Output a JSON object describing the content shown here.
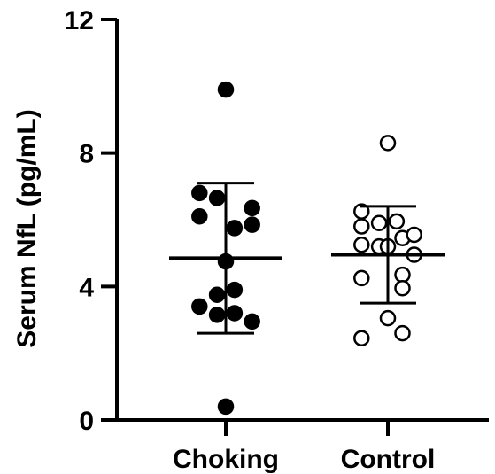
{
  "chart_data": {
    "type": "scatter",
    "ylabel": "Serum NfL (pg/mL)",
    "xlabel": "",
    "ylim": [
      0,
      12
    ],
    "yticks": [
      0,
      4,
      8,
      12
    ],
    "ytick_labels": [
      "0",
      "4",
      "8",
      "12"
    ],
    "grid": false,
    "categories": [
      "Choking",
      "Control"
    ],
    "series": [
      {
        "category": "Choking",
        "marker": "filled-circle",
        "color": "#000000",
        "points": [
          {
            "offset": 0.0,
            "value": 9.9
          },
          {
            "offset": -0.45,
            "value": 6.8
          },
          {
            "offset": -0.15,
            "value": 6.65
          },
          {
            "offset": 0.45,
            "value": 6.35
          },
          {
            "offset": -0.45,
            "value": 6.1
          },
          {
            "offset": 0.45,
            "value": 5.85
          },
          {
            "offset": 0.15,
            "value": 5.75
          },
          {
            "offset": 0.0,
            "value": 4.75
          },
          {
            "offset": -0.15,
            "value": 3.75
          },
          {
            "offset": 0.15,
            "value": 3.9
          },
          {
            "offset": -0.45,
            "value": 3.4
          },
          {
            "offset": -0.15,
            "value": 3.15
          },
          {
            "offset": 0.15,
            "value": 3.2
          },
          {
            "offset": 0.45,
            "value": 2.95
          },
          {
            "offset": 0.0,
            "value": 0.4
          }
        ],
        "mean": 4.85,
        "sd_upper": 7.1,
        "sd_lower": 2.6
      },
      {
        "category": "Control",
        "marker": "open-circle",
        "color": "#000000",
        "points": [
          {
            "offset": 0.0,
            "value": 8.3
          },
          {
            "offset": -0.45,
            "value": 6.25
          },
          {
            "offset": -0.45,
            "value": 5.8
          },
          {
            "offset": -0.15,
            "value": 5.9
          },
          {
            "offset": 0.15,
            "value": 5.95
          },
          {
            "offset": -0.45,
            "value": 5.25
          },
          {
            "offset": -0.15,
            "value": 5.2
          },
          {
            "offset": 0.0,
            "value": 5.2
          },
          {
            "offset": 0.25,
            "value": 5.45
          },
          {
            "offset": 0.45,
            "value": 5.55
          },
          {
            "offset": 0.45,
            "value": 4.95
          },
          {
            "offset": -0.45,
            "value": 4.25
          },
          {
            "offset": 0.25,
            "value": 4.35
          },
          {
            "offset": 0.25,
            "value": 3.95
          },
          {
            "offset": 0.0,
            "value": 3.05
          },
          {
            "offset": 0.25,
            "value": 2.6
          },
          {
            "offset": -0.45,
            "value": 2.45
          }
        ],
        "mean": 4.95,
        "sd_upper": 6.4,
        "sd_lower": 3.5
      }
    ]
  }
}
